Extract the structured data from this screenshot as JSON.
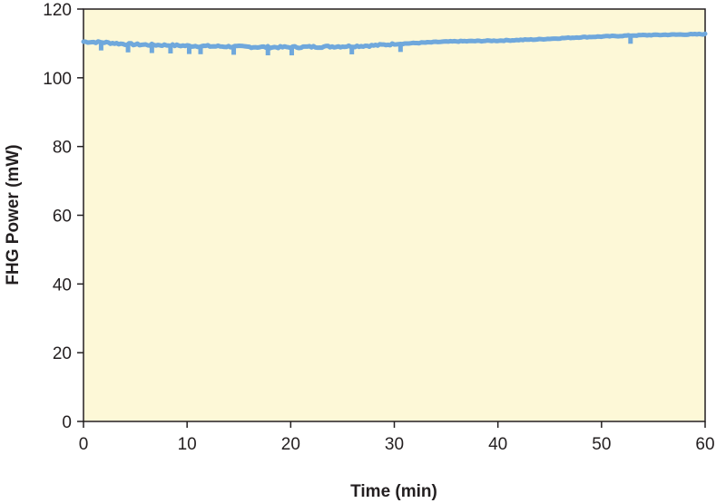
{
  "chart_data": {
    "type": "line",
    "xlabel": "Time (min)",
    "ylabel": "FHG Power (mW)",
    "xlim": [
      0,
      60
    ],
    "ylim": [
      0,
      120
    ],
    "xticks": [
      "0",
      "10",
      "20",
      "30",
      "40",
      "50",
      "60"
    ],
    "yticks": [
      "0",
      "20",
      "40",
      "60",
      "80",
      "100",
      "120"
    ],
    "grid": false,
    "series": [
      {
        "x": [
          0,
          2,
          4,
          6,
          8,
          10,
          12,
          14,
          16,
          18,
          20,
          22,
          24,
          26,
          28,
          30,
          32,
          34,
          36,
          38,
          40,
          42,
          44,
          46,
          48,
          50,
          52,
          54,
          56,
          58,
          60
        ],
        "y": [
          110.5,
          110.3,
          109.8,
          109.6,
          109.5,
          109.3,
          109.2,
          109.1,
          109.0,
          108.9,
          108.9,
          109.0,
          109.1,
          109.2,
          109.4,
          109.8,
          110.1,
          110.4,
          110.6,
          110.7,
          110.8,
          111.0,
          111.2,
          111.5,
          111.8,
          112.0,
          112.2,
          112.4,
          112.5,
          112.6,
          112.7
        ]
      }
    ],
    "colors": {
      "line": "#6fa8dc",
      "plot_bg": "#fdf8d7",
      "axis": "#231f20"
    }
  }
}
